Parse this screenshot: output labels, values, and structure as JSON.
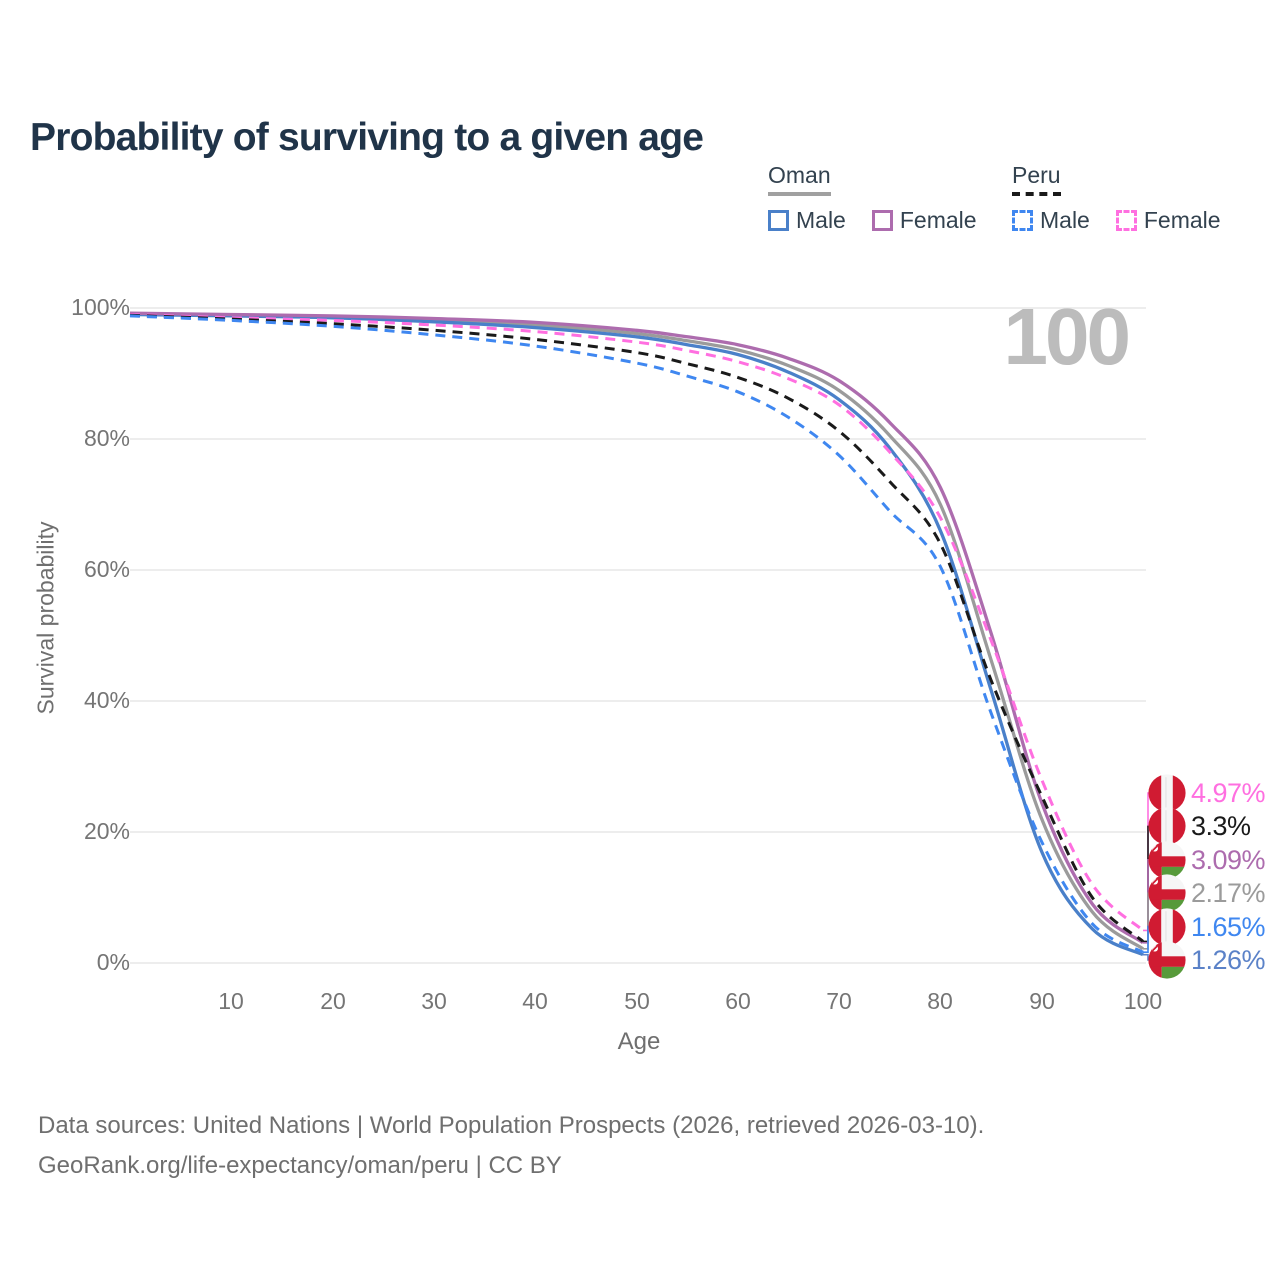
{
  "header": {
    "title": "Probability of surviving to a given age"
  },
  "legend": {
    "groups": [
      {
        "id": "oman",
        "title": "Oman",
        "line_color": "#a0a0a0",
        "line_style": "solid",
        "items": [
          {
            "label": "Male",
            "color": "#4a80c9",
            "dashed": false
          },
          {
            "label": "Female",
            "color": "#ad6cae",
            "dashed": false
          }
        ]
      },
      {
        "id": "peru",
        "title": "Peru",
        "line_color": "#1a1a1a",
        "line_style": "dashed",
        "items": [
          {
            "label": "Male",
            "color": "#3f87f0",
            "dashed": true
          },
          {
            "label": "Female",
            "color": "#ff6fe0",
            "dashed": true
          }
        ]
      }
    ]
  },
  "chart_data": {
    "type": "line",
    "title": "Probability of surviving to a given age",
    "xlabel": "Age",
    "ylabel": "Survival probability",
    "xlim": [
      0,
      100
    ],
    "ylim": [
      0,
      100
    ],
    "grid": "horizontal",
    "watermark": "100",
    "x_ticks": [
      10,
      20,
      30,
      40,
      50,
      60,
      70,
      80,
      90,
      100
    ],
    "y_ticks": [
      {
        "value": 100,
        "label": "100%"
      },
      {
        "value": 80,
        "label": "80%"
      },
      {
        "value": 60,
        "label": "60%"
      },
      {
        "value": 40,
        "label": "40%"
      },
      {
        "value": 20,
        "label": "20%"
      },
      {
        "value": 0,
        "label": "0%"
      }
    ],
    "x": [
      0,
      10,
      20,
      30,
      40,
      50,
      55,
      60,
      65,
      70,
      75,
      80,
      85,
      90,
      95,
      100
    ],
    "series": [
      {
        "name": "Oman Both sexes",
        "country": "Oman",
        "sex": "both",
        "color": "#9b9b9b",
        "dashed": false,
        "values": [
          99.1,
          98.9,
          98.6,
          98.1,
          97.4,
          96.1,
          95.0,
          93.6,
          91.2,
          87.4,
          80.5,
          70.0,
          46.3,
          22.0,
          7.8,
          2.17
        ]
      },
      {
        "name": "Oman Male",
        "country": "Oman",
        "sex": "male",
        "color": "#4a80c9",
        "dashed": false,
        "values": [
          99.0,
          98.8,
          98.5,
          97.9,
          97.0,
          95.6,
          94.4,
          92.9,
          90.2,
          86.0,
          78.6,
          66.0,
          41.7,
          17.0,
          5.2,
          1.26
        ]
      },
      {
        "name": "Oman Female",
        "country": "Oman",
        "sex": "female",
        "color": "#ad6cae",
        "dashed": false,
        "values": [
          99.2,
          99.0,
          98.8,
          98.4,
          97.8,
          96.6,
          95.6,
          94.4,
          92.3,
          88.9,
          82.5,
          72.6,
          50.4,
          24.5,
          9.0,
          3.09
        ]
      },
      {
        "name": "Peru Female",
        "country": "Peru",
        "sex": "female",
        "color": "#ff6fe0",
        "dashed": true,
        "values": [
          99.0,
          98.5,
          98.1,
          97.4,
          96.4,
          94.8,
          93.5,
          91.8,
          89.2,
          85.2,
          78.0,
          68.0,
          49.3,
          28.0,
          12.0,
          4.97
        ]
      },
      {
        "name": "Peru Both sexes",
        "country": "Peru",
        "sex": "both",
        "color": "#1a1a1a",
        "dashed": true,
        "values": [
          98.9,
          98.3,
          97.6,
          96.6,
          95.2,
          93.2,
          91.5,
          89.4,
          86.2,
          81.2,
          73.5,
          64.0,
          43.2,
          25.5,
          10.0,
          3.3
        ]
      },
      {
        "name": "Peru Male",
        "country": "Peru",
        "sex": "male",
        "color": "#3f87f0",
        "dashed": true,
        "values": [
          98.8,
          98.1,
          97.2,
          95.9,
          94.2,
          91.6,
          89.6,
          87.2,
          83.3,
          77.5,
          69.0,
          60.5,
          38.2,
          18.5,
          6.0,
          1.65
        ]
      }
    ],
    "end_labels": [
      {
        "label": "4.97%",
        "value": 4.97,
        "color": "#ff6fe0",
        "flag": "peru",
        "series": "Peru Female"
      },
      {
        "label": "3.3%",
        "value": 3.3,
        "color": "#1a1a1a",
        "flag": "peru",
        "series": "Peru Both sexes"
      },
      {
        "label": "3.09%",
        "value": 3.09,
        "color": "#ad6cae",
        "flag": "oman",
        "series": "Oman Female"
      },
      {
        "label": "2.17%",
        "value": 2.17,
        "color": "#9b9b9b",
        "flag": "oman",
        "series": "Oman Both sexes"
      },
      {
        "label": "1.65%",
        "value": 1.65,
        "color": "#3f87f0",
        "flag": "peru",
        "series": "Peru Male"
      },
      {
        "label": "1.26%",
        "value": 1.26,
        "color": "#5b82c8",
        "flag": "oman",
        "series": "Oman Male"
      }
    ]
  },
  "footer": {
    "line1": "Data sources: United Nations | World Population Prospects (2026, retrieved 2026-03-10).",
    "line2": "GeoRank.org/life-expectancy/oman/peru | CC BY"
  }
}
